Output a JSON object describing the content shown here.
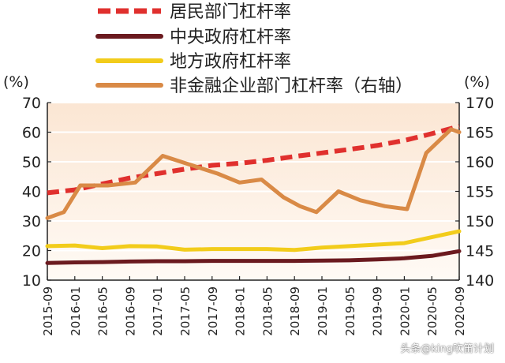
{
  "chart_data": {
    "type": "line",
    "categories": [
      "2015-09",
      "2016-01",
      "2016-05",
      "2016-09",
      "2017-01",
      "2017-05",
      "2017-09",
      "2018-01",
      "2018-05",
      "2018-09",
      "2019-01",
      "2019-05",
      "2019-09",
      "2020-01",
      "2020-05",
      "2020-09"
    ],
    "left_axis": {
      "unit": "(%)",
      "min": 10,
      "max": 70,
      "ticks": [
        10,
        20,
        30,
        40,
        50,
        60,
        70
      ]
    },
    "right_axis": {
      "unit": "(%)",
      "min": 140,
      "max": 170,
      "ticks": [
        140,
        145,
        150,
        155,
        160,
        165,
        170
      ]
    },
    "series": [
      {
        "name": "居民部门杠杆率",
        "axis": "left",
        "style": "dashed",
        "color": "#e0302e",
        "points": [
          [
            0,
            39.5
          ],
          [
            1,
            40.5
          ],
          [
            2,
            42.5
          ],
          [
            3,
            44.5
          ],
          [
            4,
            46
          ],
          [
            5,
            47.5
          ],
          [
            6,
            48.8
          ],
          [
            7,
            49.5
          ],
          [
            8,
            50.5
          ],
          [
            9,
            51.8
          ],
          [
            10,
            53
          ],
          [
            11,
            54.2
          ],
          [
            12,
            55.5
          ],
          [
            13,
            57.2
          ],
          [
            14,
            59.5
          ],
          [
            15,
            62
          ]
        ]
      },
      {
        "name": "中央政府杠杆率",
        "axis": "left",
        "style": "solid",
        "color": "#6b1a1f",
        "points": [
          [
            0,
            15.8
          ],
          [
            1,
            16
          ],
          [
            2,
            16.1
          ],
          [
            3,
            16.3
          ],
          [
            4,
            16.4
          ],
          [
            5,
            16.4
          ],
          [
            6,
            16.5
          ],
          [
            7,
            16.5
          ],
          [
            8,
            16.5
          ],
          [
            9,
            16.5
          ],
          [
            10,
            16.6
          ],
          [
            11,
            16.7
          ],
          [
            12,
            17
          ],
          [
            13,
            17.4
          ],
          [
            14,
            18.2
          ],
          [
            15,
            19.8
          ]
        ]
      },
      {
        "name": "地方政府杠杆率",
        "axis": "left",
        "style": "solid",
        "color": "#f2cc1b",
        "points": [
          [
            0,
            21.5
          ],
          [
            1,
            21.7
          ],
          [
            2,
            20.8
          ],
          [
            3,
            21.5
          ],
          [
            4,
            21.4
          ],
          [
            5,
            20.3
          ],
          [
            6,
            20.5
          ],
          [
            7,
            20.5
          ],
          [
            8,
            20.5
          ],
          [
            9,
            20.2
          ],
          [
            10,
            21
          ],
          [
            11,
            21.5
          ],
          [
            12,
            22
          ],
          [
            13,
            22.5
          ],
          [
            14,
            24.5
          ],
          [
            15,
            26.5
          ]
        ]
      },
      {
        "name": "非金融企业部门杠杆率（右轴）",
        "axis": "right",
        "style": "solid",
        "color": "#d98a46",
        "points": [
          [
            0,
            150.5
          ],
          [
            0.6,
            151.5
          ],
          [
            1.2,
            156
          ],
          [
            2.2,
            156
          ],
          [
            3.2,
            156.5
          ],
          [
            4.2,
            161
          ],
          [
            5.2,
            159.5
          ],
          [
            6.2,
            158
          ],
          [
            7,
            156.5
          ],
          [
            7.8,
            157
          ],
          [
            8.6,
            154
          ],
          [
            9.2,
            152.5
          ],
          [
            9.8,
            151.5
          ],
          [
            10.6,
            155
          ],
          [
            11.4,
            153.5
          ],
          [
            12.3,
            152.5
          ],
          [
            13.1,
            152
          ],
          [
            13.8,
            161.5
          ],
          [
            14.7,
            165.5
          ],
          [
            15,
            165
          ]
        ]
      }
    ]
  },
  "colors": {
    "grid": "#ffffff",
    "bg_top": "#fbe6d3",
    "bg_bottom": "#fffaf5",
    "axis": "#222222"
  },
  "watermark": "头条@king吹笛计划"
}
